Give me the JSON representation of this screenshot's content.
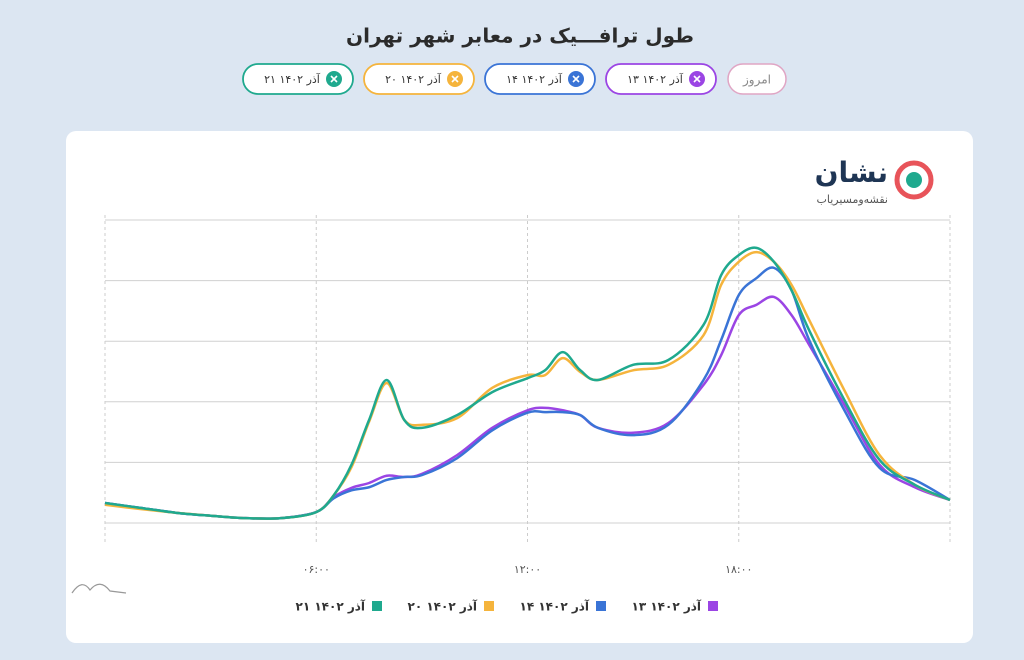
{
  "title": "طول ترافـــیک در معابر شهر تهران",
  "today_chip": "امروز",
  "logo": {
    "name": "نشان",
    "tagline": "نقشه‌و‌مسیریاب"
  },
  "chart_data": {
    "type": "line",
    "x": [
      0,
      1,
      2,
      3,
      4,
      5,
      6,
      6.5,
      7,
      7.5,
      8,
      8.5,
      9,
      10,
      11,
      12,
      12.5,
      13,
      13.5,
      14,
      15,
      16,
      17,
      17.5,
      18,
      18.5,
      19,
      19.5,
      20,
      21,
      22,
      23,
      24
    ],
    "xlim": [
      0,
      24
    ],
    "xticks": [
      {
        "value": 6,
        "label": "۰۶:۰۰"
      },
      {
        "value": 12,
        "label": "۱۲:۰۰"
      },
      {
        "value": 18,
        "label": "۱۸:۰۰"
      }
    ],
    "ylim": [
      0,
      5
    ],
    "yticks": [
      0,
      1,
      2,
      3,
      4,
      5
    ],
    "ytick_labels": false,
    "grid": true,
    "legend": "bottom",
    "series": [
      {
        "name": "۱۳ آذر ۱۴۰۲",
        "color": "#9b45e4",
        "values": [
          0.33,
          0.25,
          0.17,
          0.12,
          0.08,
          0.08,
          0.18,
          0.43,
          0.58,
          0.66,
          0.78,
          0.76,
          0.81,
          1.12,
          1.57,
          1.86,
          1.9,
          1.86,
          1.78,
          1.57,
          1.49,
          1.65,
          2.28,
          2.77,
          3.43,
          3.6,
          3.73,
          3.43,
          2.94,
          1.95,
          0.96,
          0.59,
          0.38
        ]
      },
      {
        "name": "۱۴ آذر ۱۴۰۲",
        "color": "#3a74d6",
        "values": [
          0.33,
          0.25,
          0.17,
          0.12,
          0.08,
          0.08,
          0.18,
          0.41,
          0.54,
          0.59,
          0.71,
          0.76,
          0.79,
          1.07,
          1.53,
          1.82,
          1.83,
          1.83,
          1.78,
          1.57,
          1.45,
          1.62,
          2.36,
          3.02,
          3.76,
          4.04,
          4.21,
          3.84,
          3.02,
          1.86,
          0.91,
          0.71,
          0.38
        ]
      },
      {
        "name": "۲۰ آذر ۱۴۰۲",
        "color": "#f5b43c",
        "values": [
          0.3,
          0.23,
          0.17,
          0.12,
          0.08,
          0.08,
          0.18,
          0.46,
          0.92,
          1.67,
          2.31,
          1.7,
          1.62,
          1.73,
          2.23,
          2.44,
          2.44,
          2.72,
          2.49,
          2.36,
          2.52,
          2.61,
          3.1,
          3.93,
          4.31,
          4.47,
          4.31,
          3.93,
          3.35,
          2.19,
          1.12,
          0.63,
          0.38
        ]
      },
      {
        "name": "۲۱ آذر ۱۴۰۲",
        "color": "#1fa98e",
        "values": [
          0.33,
          0.25,
          0.17,
          0.12,
          0.08,
          0.08,
          0.18,
          0.46,
          0.96,
          1.7,
          2.36,
          1.7,
          1.57,
          1.78,
          2.16,
          2.39,
          2.52,
          2.82,
          2.52,
          2.36,
          2.61,
          2.69,
          3.27,
          4.09,
          4.42,
          4.54,
          4.31,
          3.84,
          3.18,
          2.03,
          1.04,
          0.63,
          0.38
        ]
      }
    ]
  }
}
